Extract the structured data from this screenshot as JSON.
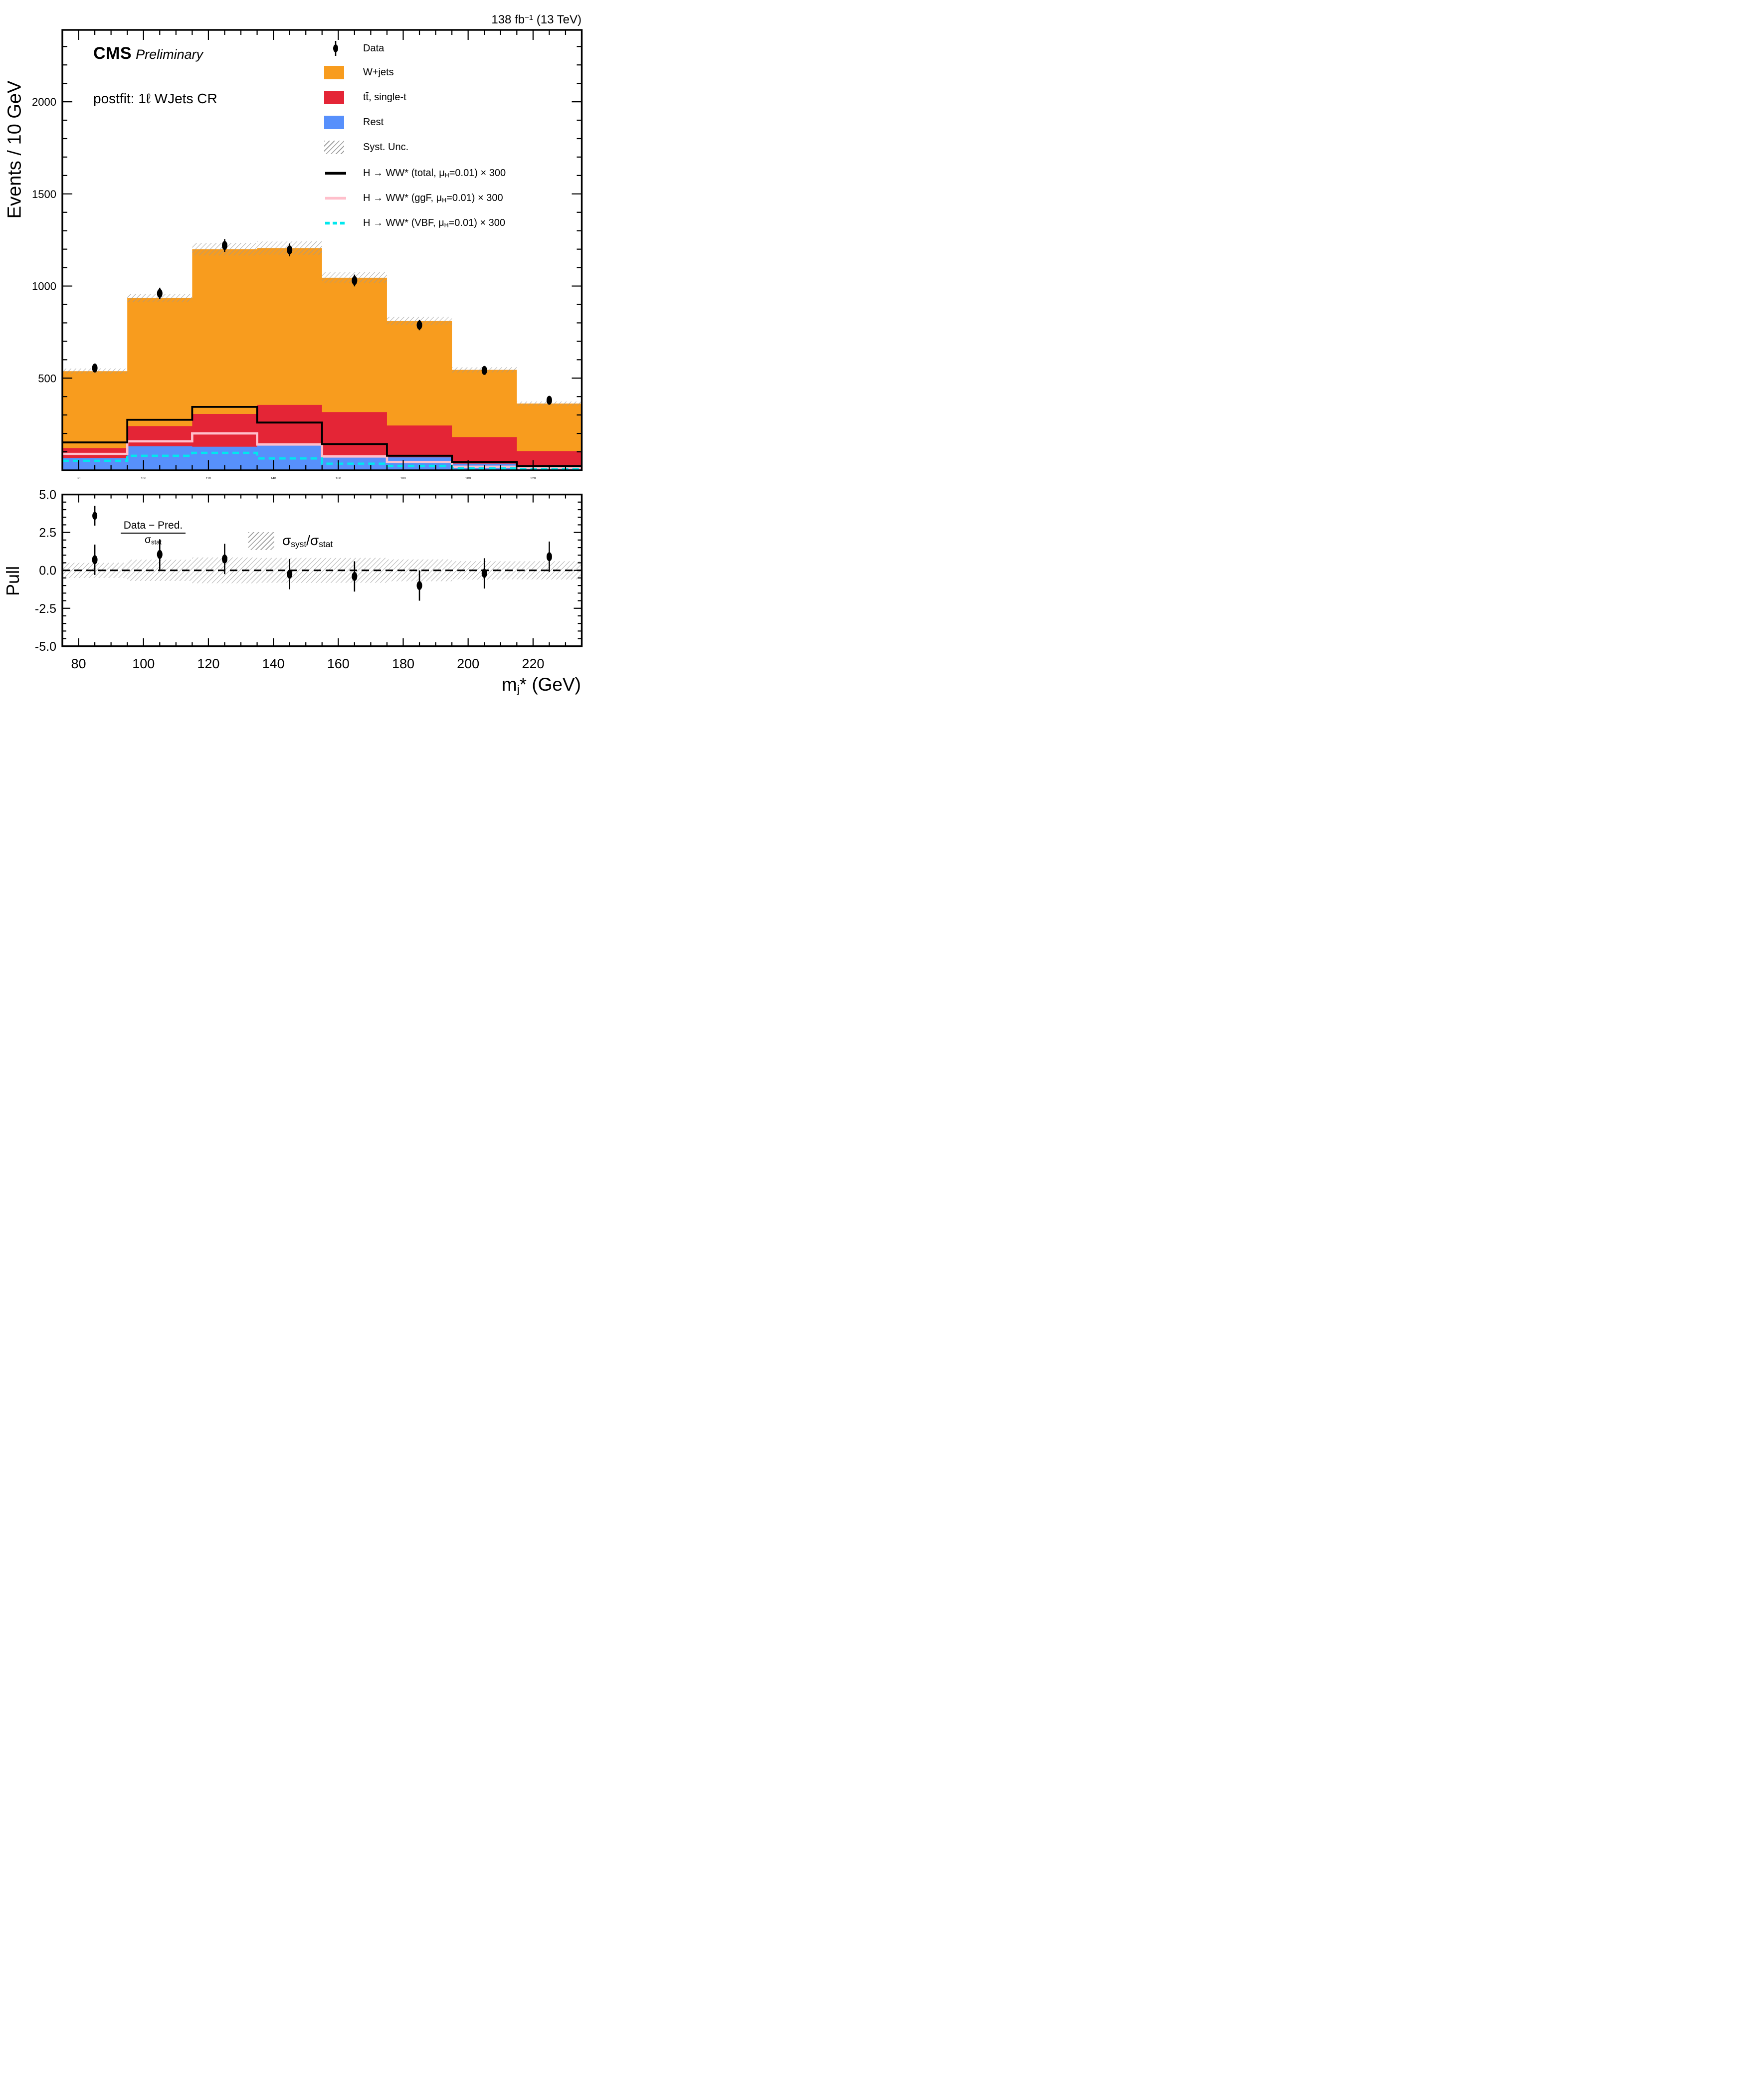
{
  "header": {
    "cms": "CMS",
    "status": "Preliminary",
    "fit_label": "postfit: 1ℓ WJets CR",
    "lumi": {
      "p1": "138 fb",
      "sup": "−1",
      "p2": " (13 TeV)"
    }
  },
  "axes": {
    "main_ylabel": "Events / 10 GeV",
    "pull_ylabel": "Pull",
    "xlabel": {
      "p1": "m",
      "sub": "j",
      "p2": "* (GeV)"
    }
  },
  "legend": {
    "data_label": "Data",
    "wjets_label": "W+jets",
    "top_label": "tt̄, single-t",
    "rest_label": "Rest",
    "syst_label": "Syst. Unc.",
    "signal_total": {
      "p1": "H → WW* (total, μ",
      "sub": "H",
      "p2": "=0.01) × 300"
    },
    "signal_ggf": {
      "p1": "H → WW* (ggF, μ",
      "sub": "H",
      "p2": "=0.01) × 300"
    },
    "signal_vbf": {
      "p1": "H → WW* (VBF, μ",
      "sub": "H",
      "p2": "=0.01) × 300"
    }
  },
  "pull_legend": {
    "ratio_num": "Data − Pred.",
    "ratio_den": {
      "p1": "σ",
      "sub": "stat"
    },
    "band": {
      "p1": "σ",
      "sub1": "syst",
      "p2": "/σ",
      "sub2": "stat"
    }
  },
  "colors": {
    "wjets": "#F89C1E",
    "top": "#E42536",
    "rest": "#5790FC",
    "signal_total": "#000000",
    "signal_ggf": "#FFBFCB",
    "signal_vbf": "#00E8EE",
    "hatch": "#999999",
    "marker": "#000000"
  },
  "chart_data": [
    {
      "type": "bar",
      "subtype": "stacked-step-histogram",
      "title": "postfit: 1ℓ WJets CR",
      "xlabel": "m_j* (GeV)",
      "ylabel": "Events / 10 GeV",
      "xlim": [
        75,
        235
      ],
      "ylim": [
        0,
        2390
      ],
      "grid": false,
      "legend_position": "upper right",
      "bin_edges": [
        75,
        95,
        115,
        135,
        155,
        175,
        195,
        215,
        235
      ],
      "bin_centers": [
        85,
        105,
        125,
        145,
        165,
        185,
        205,
        225
      ],
      "x_ticks_major": [
        80,
        100,
        120,
        140,
        160,
        180,
        200,
        220
      ],
      "x_minor_step": 5,
      "y_ticks_major": [
        500,
        1000,
        1500,
        2000
      ],
      "y_minor_step": 100,
      "series": [
        {
          "name": "Rest",
          "color": "#5790FC",
          "values": [
            67,
            130,
            128,
            137,
            73,
            70,
            36,
            14
          ]
        },
        {
          "name": "tt̄, single-t",
          "color": "#E42536",
          "values": [
            53,
            110,
            178,
            218,
            243,
            173,
            144,
            90
          ]
        },
        {
          "name": "W+jets",
          "color": "#F89C1E",
          "values": [
            418,
            695,
            894,
            851,
            729,
            567,
            365,
            258
          ]
        }
      ],
      "total_prediction": [
        538,
        935,
        1200,
        1206,
        1045,
        810,
        545,
        362
      ],
      "syst_unc_half_width": [
        14,
        22,
        34,
        36,
        30,
        22,
        14,
        11
      ],
      "signal_lines": [
        {
          "name": "H → WW* (total, μH=0.01) × 300",
          "color": "#000000",
          "style": "solid",
          "values": [
            151,
            274,
            344,
            259,
            142,
            79,
            45,
            22
          ]
        },
        {
          "name": "H → WW* (ggF, μH=0.01) × 300",
          "color": "#FFBFCB",
          "style": "solid",
          "values": [
            89,
            157,
            200,
            140,
            75,
            45,
            19,
            12
          ]
        },
        {
          "name": "H → WW* (VBF, μH=0.01) × 300",
          "color": "#00E8EE",
          "style": "dashed",
          "values": [
            52,
            79,
            95,
            64,
            36,
            24,
            10,
            7
          ]
        }
      ],
      "data_points": {
        "name": "Data",
        "y": [
          555,
          960,
          1220,
          1196,
          1030,
          788,
          542,
          380
        ],
        "yerr": [
          24,
          31,
          35,
          35,
          32,
          28,
          23,
          20
        ]
      }
    },
    {
      "type": "scatter",
      "subtype": "pull-panel",
      "ylabel": "Pull",
      "ylim": [
        -5,
        5
      ],
      "x": [
        85,
        105,
        125,
        145,
        165,
        185,
        205,
        225
      ],
      "values": [
        0.7,
        1.05,
        0.75,
        -0.25,
        -0.4,
        -1.0,
        -0.2,
        0.9
      ],
      "yerr": [
        1,
        1,
        1,
        1,
        1,
        1,
        1,
        1
      ],
      "band_name": "σ_syst/σ_stat",
      "band_half_width": [
        0.5,
        0.7,
        0.85,
        0.82,
        0.82,
        0.72,
        0.6,
        0.6
      ],
      "zero_line": "dashed",
      "y_ticks_major": [
        5,
        2.5,
        0,
        -2.5,
        -5
      ],
      "y_tick_labels": [
        "5.0",
        "2.5",
        "0.0",
        "-2.5",
        "-5.0"
      ],
      "y_minor_step": 0.5,
      "legend_marker_pull": 3.6
    }
  ]
}
